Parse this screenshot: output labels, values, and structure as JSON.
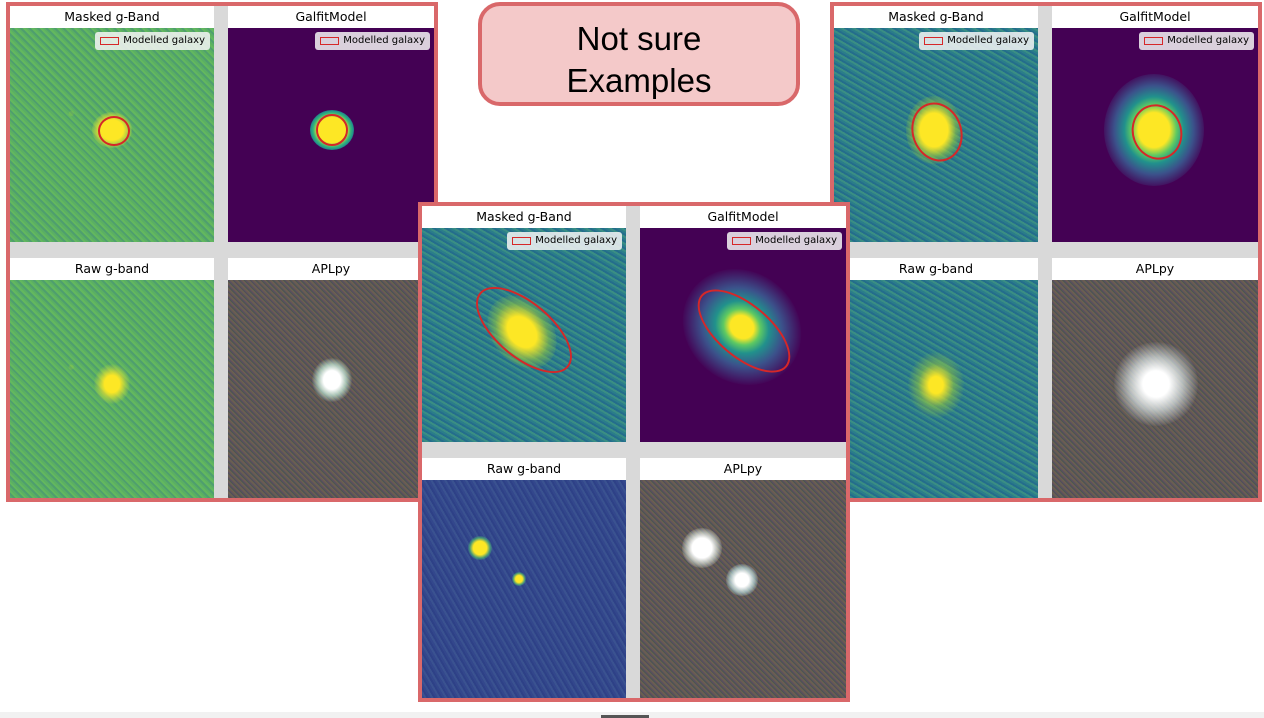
{
  "title": {
    "line1": "Not sure",
    "line2": "Examples"
  },
  "panel_titles": {
    "masked": "Masked g-Band",
    "galfit": "GalfitModel",
    "raw": "Raw g-band",
    "aplpy": "APLpy"
  },
  "legend_label": "Modelled galaxy",
  "colors": {
    "frame": "#d9686a",
    "title_fill": "#f4c9c9",
    "ellipse": "#d62728",
    "viridis_bg_purple": "#440154",
    "galaxy_core": "#fde725"
  }
}
